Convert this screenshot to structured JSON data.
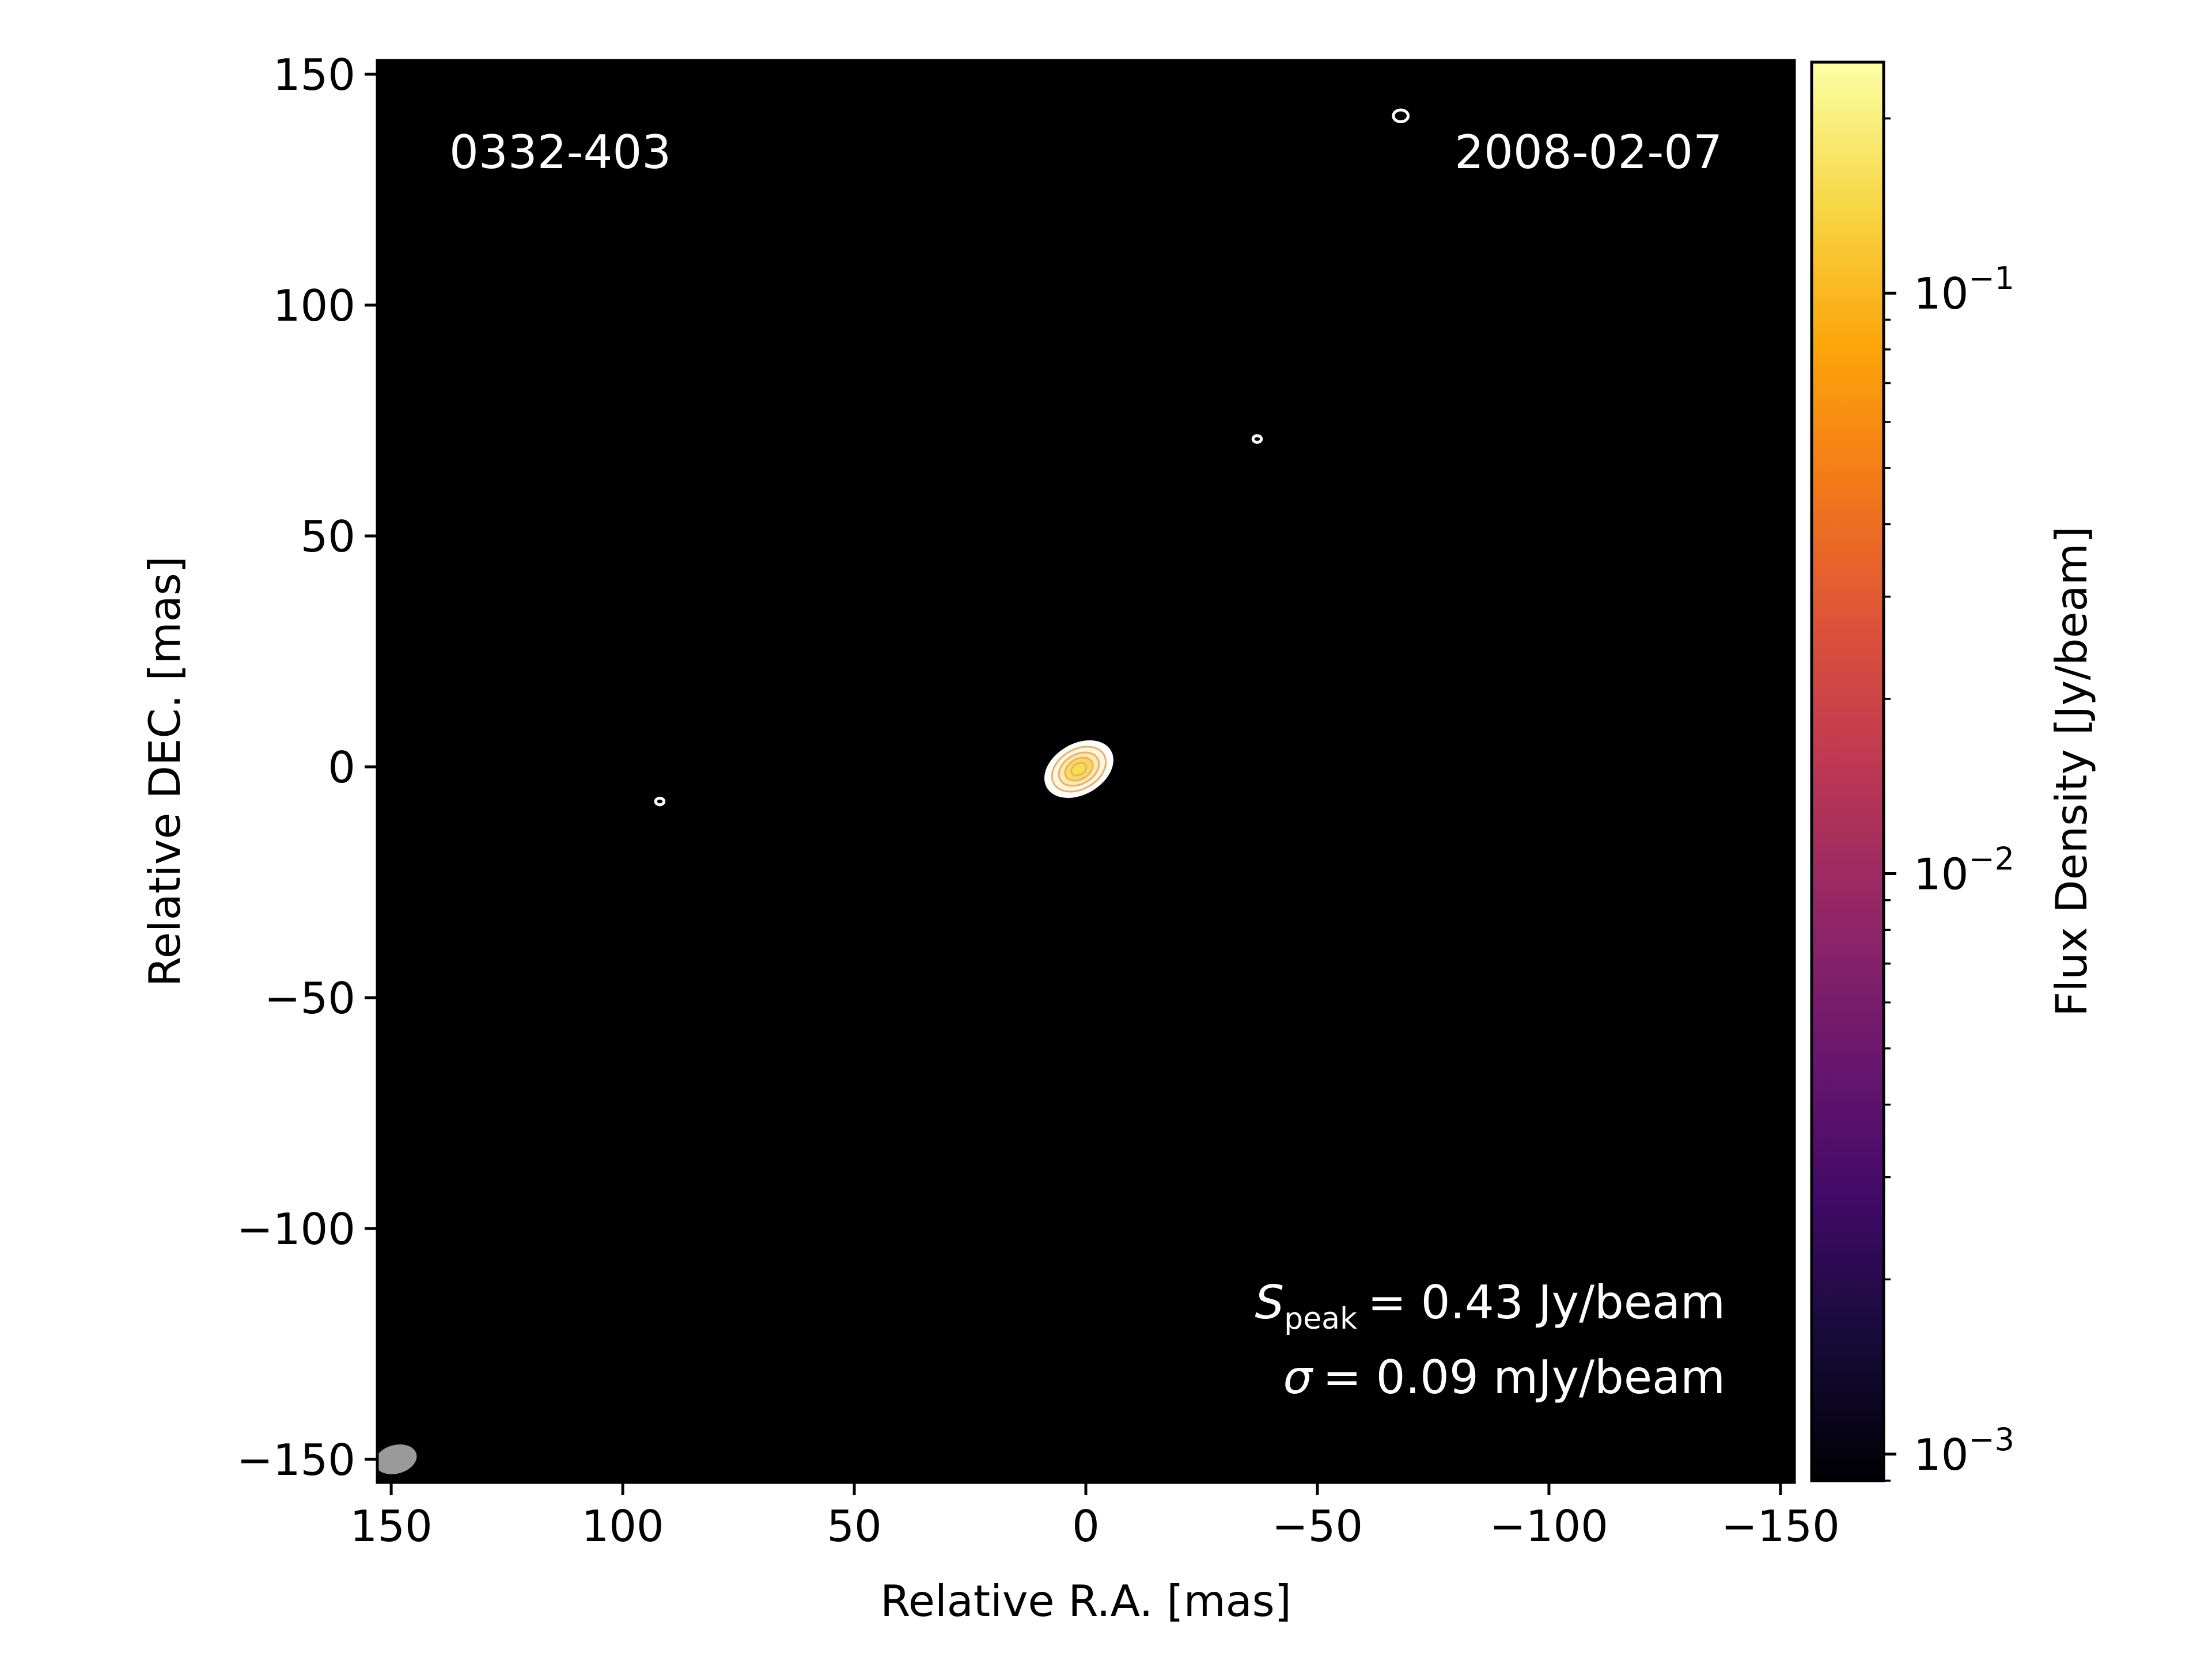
{
  "chart_data": {
    "type": "heatmap",
    "title": "",
    "xlabel": "Relative R.A. [mas]",
    "ylabel": "Relative DEC. [mas]",
    "xlim": [
      153,
      -153
    ],
    "ylim": [
      -155,
      153
    ],
    "x_ticks": [
      150,
      100,
      50,
      0,
      -50,
      -100,
      -150
    ],
    "y_ticks": [
      150,
      100,
      50,
      0,
      -50,
      -100,
      -150
    ],
    "x_tick_labels": [
      "150",
      "100",
      "50",
      "0",
      "−50",
      "−100",
      "−150"
    ],
    "y_tick_labels": [
      "150",
      "100",
      "50",
      "0",
      "−50",
      "−100",
      "−150"
    ],
    "grid": false,
    "background_color": "#000000",
    "colormap": "inferno",
    "colorbar": {
      "label": "Flux Density [Jy/beam]",
      "scale": "log",
      "range": [
        0.0009,
        0.25
      ],
      "ticks": [
        {
          "value": 0.1,
          "base": "10",
          "exponent": "−1"
        },
        {
          "value": 0.01,
          "base": "10",
          "exponent": "−2"
        },
        {
          "value": 0.001,
          "base": "10",
          "exponent": "−3"
        }
      ]
    },
    "source_name": "0332-403",
    "date": "2008-02-07",
    "peak_label": {
      "symbol": "S",
      "subscript": "peak",
      "value_text": "= 0.43 Jy/beam"
    },
    "sigma_label": {
      "symbol": "σ",
      "value_text": "= 0.09 mJy/beam"
    },
    "core": {
      "x": 1.5,
      "y": -0.5,
      "a": 8,
      "b": 5.5,
      "angle": 30
    },
    "contour_blobs": [
      {
        "x": -68,
        "y": 141,
        "size": 1.6
      },
      {
        "x": -37,
        "y": 71,
        "size": 0.9
      },
      {
        "x": 92,
        "y": -7.5,
        "size": 0.9
      }
    ],
    "beam": {
      "x": 149,
      "y": -150,
      "major": 4.6,
      "minor": 3.1,
      "angle": 15
    }
  }
}
